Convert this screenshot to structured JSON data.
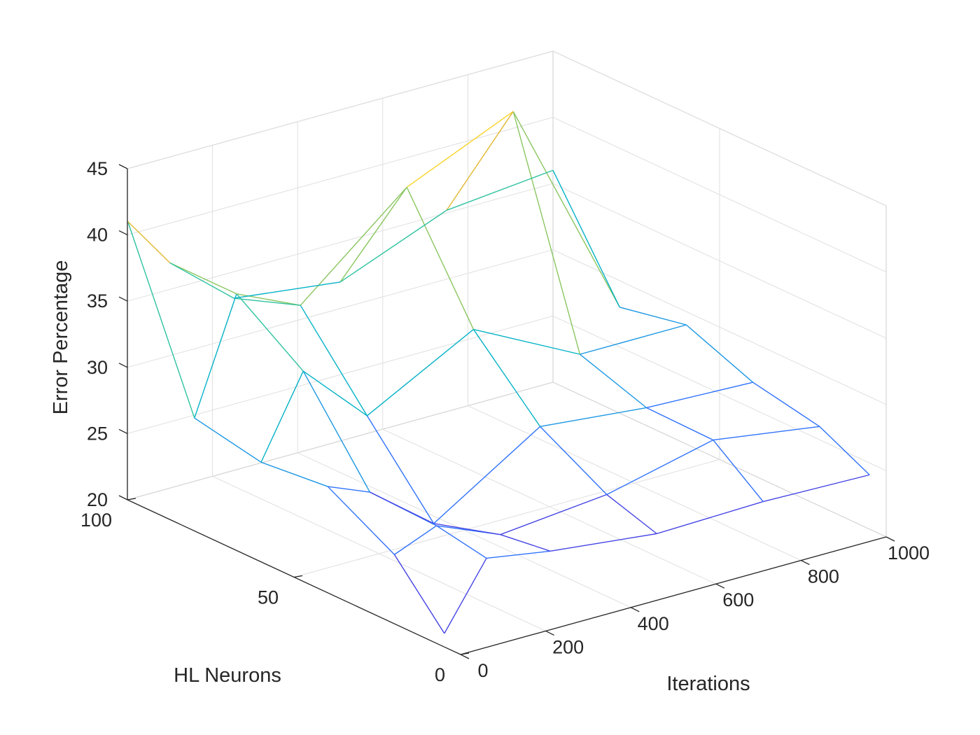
{
  "chart_data": {
    "type": "3d-mesh",
    "title": "",
    "xlabel": "Iterations",
    "ylabel": "HL Neurons",
    "zlabel": "Error Percentage",
    "xlim": [
      0,
      1000
    ],
    "ylim": [
      0,
      100
    ],
    "zlim": [
      20,
      45
    ],
    "xticks": [
      0,
      200,
      400,
      600,
      800,
      1000
    ],
    "yticks": [
      0,
      50,
      100
    ],
    "zticks": [
      20,
      25,
      30,
      35,
      40,
      45
    ],
    "grid": true,
    "iterations": [
      1,
      100,
      250,
      500,
      750,
      1000
    ],
    "neurons": [
      5,
      20,
      40,
      60,
      80,
      100
    ],
    "error_matrix_rows_by_neurons": [
      [
        21.0,
        25.8,
        25.0,
        24.1,
        24.3,
        24.1
      ],
      [
        25.2,
        26.5,
        24.5,
        25.3,
        27.2,
        26.0
      ],
      [
        28.0,
        26.7,
        23.0,
        28.1,
        27.3,
        27.0
      ],
      [
        27.5,
        33.5,
        28.8,
        33.1,
        29.0,
        29.0
      ],
      [
        28.5,
        37.0,
        34.8,
        41.5,
        45.0,
        28.0
      ],
      [
        41.0,
        37.0,
        33.0,
        32.0,
        35.2,
        36.0
      ]
    ],
    "colormap": [
      "#3e26a8",
      "#4443e4",
      "#2f72fc",
      "#1b97e2",
      "#04b2c7",
      "#2ec29f",
      "#8ac660",
      "#e3b834",
      "#f9d429",
      "#f9fb15"
    ]
  }
}
